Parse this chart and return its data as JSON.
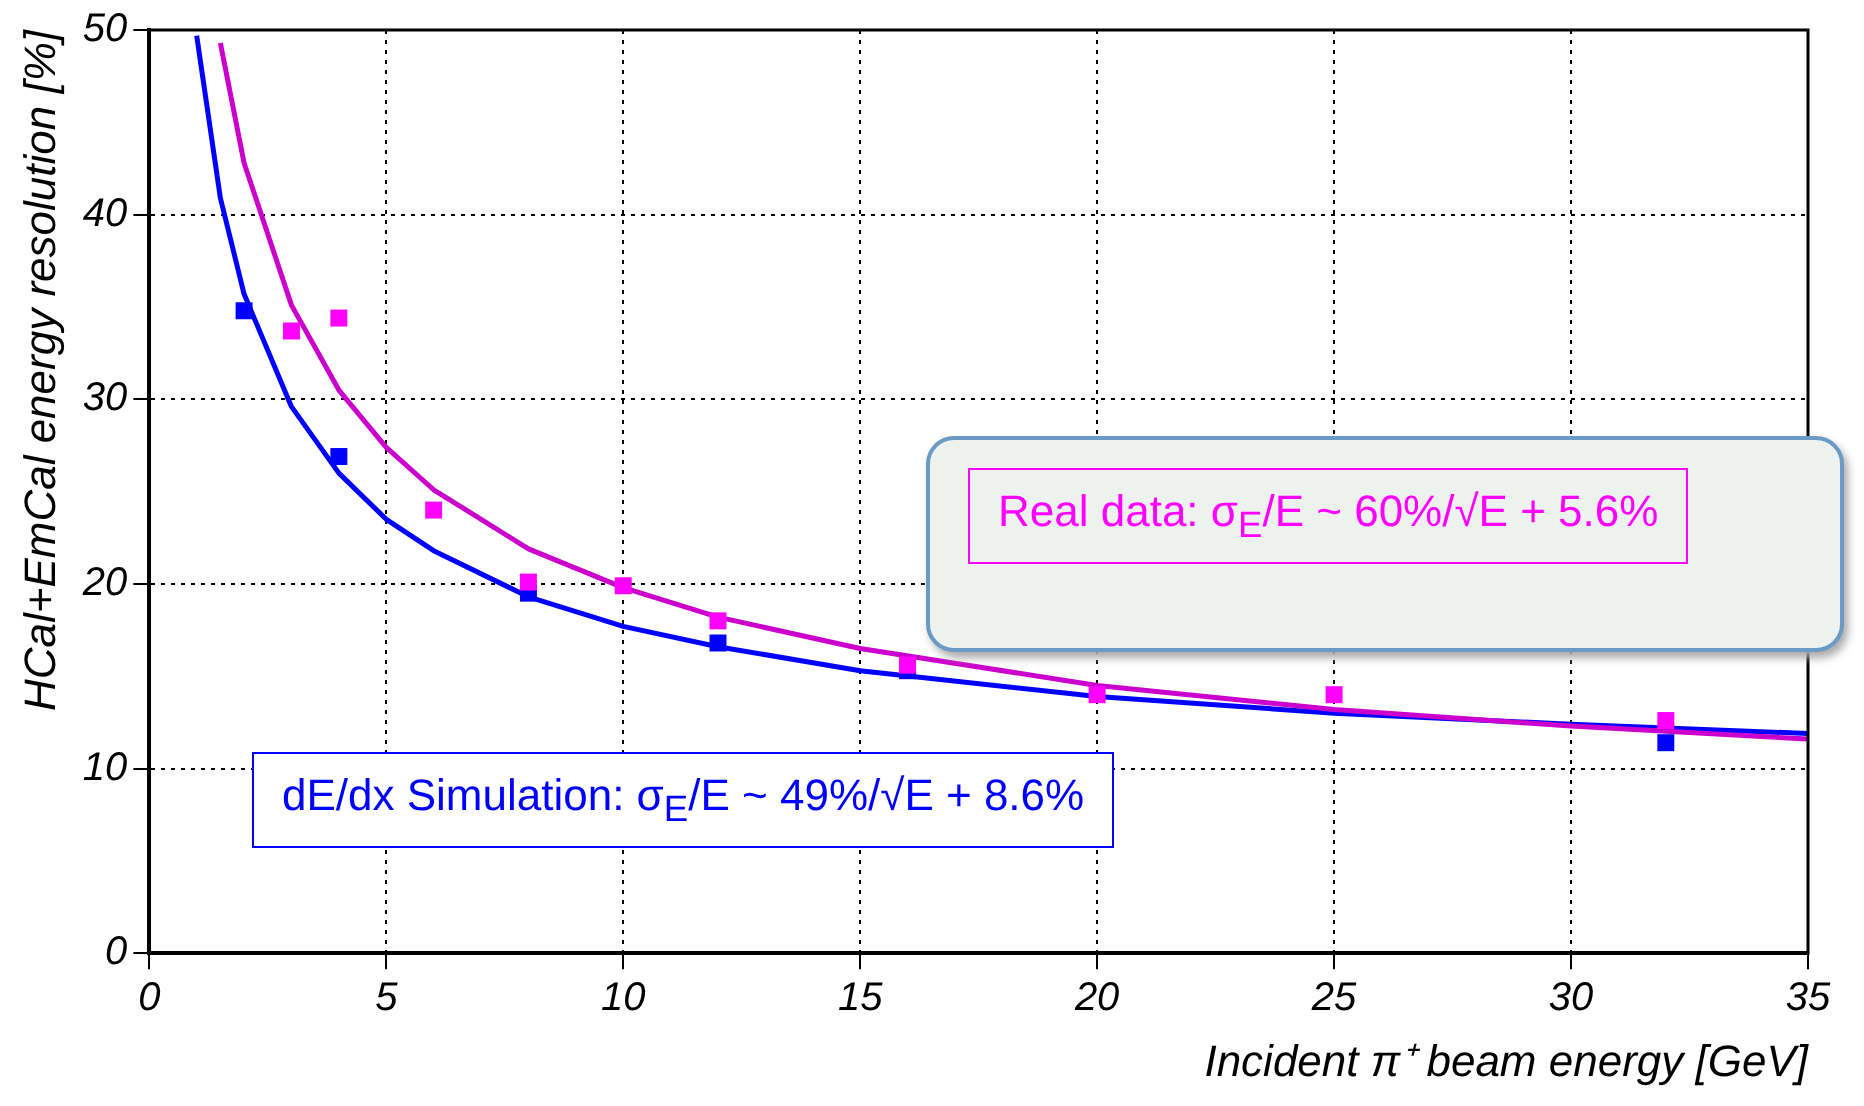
{
  "chart_data": {
    "type": "scatter",
    "xlabel": "Incident π⁺ beam energy [GeV]",
    "ylabel": "HCal+EmCal energy resolution [%]",
    "xlim": [
      0,
      35
    ],
    "xticks": [
      0,
      5,
      10,
      15,
      20,
      25,
      30,
      35
    ],
    "ylim": [
      0,
      50
    ],
    "yticks": [
      0,
      10,
      20,
      30,
      40,
      50
    ],
    "grid": true,
    "marker": "square",
    "legend": false,
    "series": [
      {
        "type": "line",
        "marker": "none",
        "color": "#0000ff",
        "x": [
          1,
          1.5,
          2,
          3,
          4,
          5,
          6,
          8,
          10,
          12,
          15,
          20,
          25,
          30,
          35
        ],
        "values": [
          49.7,
          40.9,
          35.7,
          29.6,
          26,
          23.5,
          21.8,
          19.3,
          17.7,
          16.6,
          15.3,
          13.9,
          13,
          12.4,
          11.9
        ]
      },
      {
        "type": "line",
        "marker": "none",
        "color": "#cc00cc",
        "x": [
          1.5,
          2,
          3,
          4,
          5,
          6,
          8,
          10,
          12,
          15,
          20,
          25,
          30,
          35
        ],
        "values": [
          49.3,
          42.8,
          35.1,
          30.5,
          27.4,
          25.1,
          21.9,
          19.8,
          18.2,
          16.5,
          14.5,
          13.2,
          12.3,
          11.6
        ]
      },
      {
        "name": "dE/dx Simulation: σ$_{E}$/E ~ 49%/√E + 8.6%",
        "color": "#0000ff",
        "x": [
          2,
          4,
          8,
          12,
          16,
          32
        ],
        "values": [
          34.8,
          26.9,
          19.5,
          16.8,
          15.3,
          11.4
        ]
      },
      {
        "name": "Real data: σ$_{E}$/E ~ 60%/√E + 5.6%",
        "color": "#ff00ff",
        "x": [
          3,
          4,
          6,
          8,
          10,
          12,
          16,
          20,
          25,
          32
        ],
        "values": [
          33.7,
          34.4,
          24,
          20.1,
          19.9,
          18,
          15.6,
          14,
          14,
          12.6
        ]
      }
    ]
  }
}
